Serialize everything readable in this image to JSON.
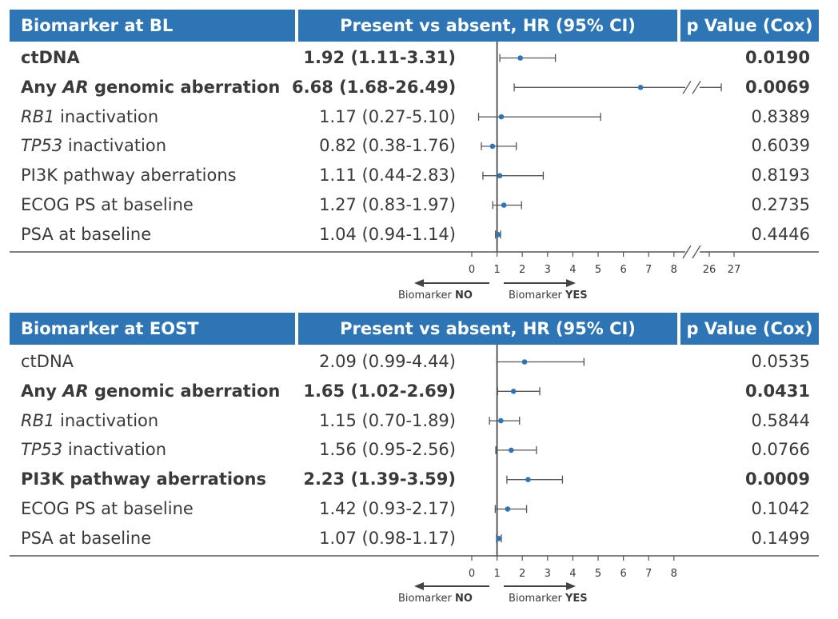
{
  "chart_data": [
    {
      "type": "forest",
      "headers": {
        "biomarker": "Biomarker at BL",
        "hr": "Present vs absent, HR (95% CI)",
        "p": "p Value (Cox)"
      },
      "rows": [
        {
          "label_parts": [
            {
              "text": "ctDNA",
              "italic": false
            }
          ],
          "hr_text": "1.92 (1.11-3.31)",
          "p": "0.0190",
          "bold": true,
          "hr": 1.92,
          "lo": 1.11,
          "hi": 3.31
        },
        {
          "label_parts": [
            {
              "text": "Any ",
              "italic": false
            },
            {
              "text": "AR",
              "italic": true
            },
            {
              "text": " genomic aberration",
              "italic": false
            }
          ],
          "hr_text": "6.68 (1.68-26.49)",
          "p": "0.0069",
          "bold": true,
          "hr": 6.68,
          "lo": 1.68,
          "hi": 26.49
        },
        {
          "label_parts": [
            {
              "text": "RB1",
              "italic": true
            },
            {
              "text": " inactivation",
              "italic": false
            }
          ],
          "hr_text": "1.17 (0.27-5.10)",
          "p": "0.8389",
          "bold": false,
          "hr": 1.17,
          "lo": 0.27,
          "hi": 5.1
        },
        {
          "label_parts": [
            {
              "text": "TP53",
              "italic": true
            },
            {
              "text": " inactivation",
              "italic": false
            }
          ],
          "hr_text": "0.82 (0.38-1.76)",
          "p": "0.6039",
          "bold": false,
          "hr": 0.82,
          "lo": 0.38,
          "hi": 1.76
        },
        {
          "label_parts": [
            {
              "text": "PI3K pathway aberrations",
              "italic": false
            }
          ],
          "hr_text": "1.11 (0.44-2.83)",
          "p": "0.8193",
          "bold": false,
          "hr": 1.11,
          "lo": 0.44,
          "hi": 2.83
        },
        {
          "label_parts": [
            {
              "text": "ECOG PS at baseline",
              "italic": false
            }
          ],
          "hr_text": "1.27 (0.83-1.97)",
          "p": "0.2735",
          "bold": false,
          "hr": 1.27,
          "lo": 0.83,
          "hi": 1.97
        },
        {
          "label_parts": [
            {
              "text": "PSA at baseline",
              "italic": false
            }
          ],
          "hr_text": "1.04 (0.94-1.14)",
          "p": "0.4446",
          "bold": false,
          "hr": 1.04,
          "lo": 0.94,
          "hi": 1.14
        }
      ],
      "x_ticks": [
        "0",
        "1",
        "2",
        "3",
        "4",
        "5",
        "6",
        "7",
        "8",
        "26",
        "27"
      ],
      "axis_break": [
        8,
        26
      ],
      "reference_line": 1,
      "direction_left": {
        "prefix": "Biomarker ",
        "bold": "NO"
      },
      "direction_right": {
        "prefix": "Biomarker ",
        "bold": "YES"
      }
    },
    {
      "type": "forest",
      "headers": {
        "biomarker": "Biomarker at EOST",
        "hr": "Present vs absent, HR (95% CI)",
        "p": "p Value (Cox)"
      },
      "rows": [
        {
          "label_parts": [
            {
              "text": "ctDNA",
              "italic": false
            }
          ],
          "hr_text": "2.09 (0.99-4.44)",
          "p": "0.0535",
          "bold": false,
          "hr": 2.09,
          "lo": 0.99,
          "hi": 4.44
        },
        {
          "label_parts": [
            {
              "text": "Any ",
              "italic": false
            },
            {
              "text": "AR",
              "italic": true
            },
            {
              "text": " genomic aberration",
              "italic": false
            }
          ],
          "hr_text": "1.65 (1.02-2.69)",
          "p": "0.0431",
          "bold": true,
          "hr": 1.65,
          "lo": 1.02,
          "hi": 2.69
        },
        {
          "label_parts": [
            {
              "text": "RB1",
              "italic": true
            },
            {
              "text": " inactivation",
              "italic": false
            }
          ],
          "hr_text": "1.15 (0.70-1.89)",
          "p": "0.5844",
          "bold": false,
          "hr": 1.15,
          "lo": 0.7,
          "hi": 1.89
        },
        {
          "label_parts": [
            {
              "text": "TP53",
              "italic": true
            },
            {
              "text": " inactivation",
              "italic": false
            }
          ],
          "hr_text": "1.56 (0.95-2.56)",
          "p": "0.0766",
          "bold": false,
          "hr": 1.56,
          "lo": 0.95,
          "hi": 2.56
        },
        {
          "label_parts": [
            {
              "text": "PI3K pathway aberrations",
              "italic": false
            }
          ],
          "hr_text": "2.23 (1.39-3.59)",
          "p": "0.0009",
          "bold": true,
          "hr": 2.23,
          "lo": 1.39,
          "hi": 3.59
        },
        {
          "label_parts": [
            {
              "text": "ECOG PS at baseline",
              "italic": false
            }
          ],
          "hr_text": "1.42 (0.93-2.17)",
          "p": "0.1042",
          "bold": false,
          "hr": 1.42,
          "lo": 0.93,
          "hi": 2.17
        },
        {
          "label_parts": [
            {
              "text": "PSA at baseline",
              "italic": false
            }
          ],
          "hr_text": "1.07 (0.98-1.17)",
          "p": "0.1499",
          "bold": false,
          "hr": 1.07,
          "lo": 0.98,
          "hi": 1.17
        }
      ],
      "x_ticks": [
        "0",
        "1",
        "2",
        "3",
        "4",
        "5",
        "6",
        "7",
        "8"
      ],
      "axis_break": null,
      "reference_line": 1,
      "direction_left": {
        "prefix": "Biomarker ",
        "bold": "NO"
      },
      "direction_right": {
        "prefix": "Biomarker ",
        "bold": "YES"
      }
    }
  ],
  "colors": {
    "header_bg": "#2e75b6",
    "header_text": "#ffffff",
    "point": "#2e75b6",
    "line": "#555555",
    "text": "#3a3a3a"
  }
}
